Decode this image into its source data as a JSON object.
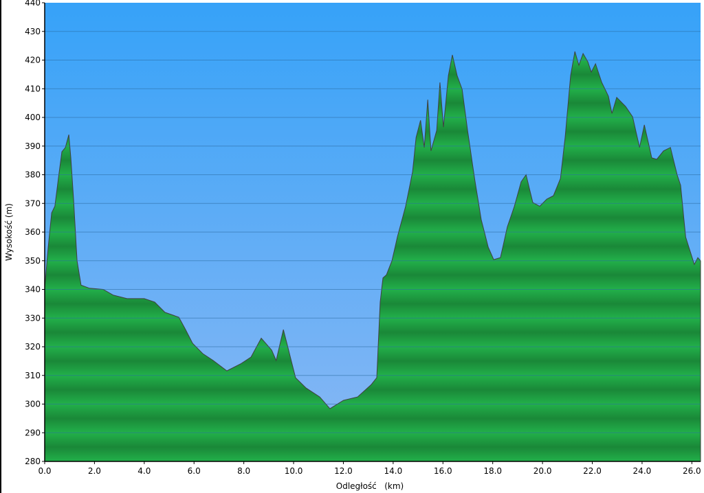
{
  "chart_data": {
    "type": "area",
    "title": "",
    "xlabel": "Odległość   (km)",
    "ylabel": "Wysokość (m)",
    "xlim": [
      0,
      26.35
    ],
    "ylim": [
      280,
      440
    ],
    "xticks": [
      "0.0",
      "2.0",
      "4.0",
      "6.0",
      "8.0",
      "10.0",
      "12.0",
      "14.0",
      "16.0",
      "18.0",
      "20.0",
      "22.0",
      "24.0",
      "26.0"
    ],
    "xtick_values": [
      0,
      2,
      4,
      6,
      8,
      10,
      12,
      14,
      16,
      18,
      20,
      22,
      24,
      26
    ],
    "yticks": [
      280,
      290,
      300,
      310,
      320,
      330,
      340,
      350,
      360,
      370,
      380,
      390,
      400,
      410,
      420,
      430,
      440
    ],
    "grid": true,
    "colors": {
      "sky_top": "#36a2f8",
      "sky_bottom": "#8ab8f4",
      "fill_light": "#22b04a",
      "fill_dark": "#1a8838",
      "outline": "#404040",
      "grid": "#2a6aa0"
    },
    "series": [
      {
        "x": [
          0,
          0.14,
          0.28,
          0.41,
          0.55,
          0.69,
          0.83,
          0.97,
          1.05,
          1.16,
          1.3,
          1.46,
          1.8,
          2.35,
          2.76,
          3.31,
          4.0,
          4.42,
          4.83,
          5.39,
          5.66,
          5.94,
          6.35,
          6.77,
          7.32,
          7.87,
          8.29,
          8.7,
          9.12,
          9.3,
          9.59,
          9.8,
          10.08,
          10.5,
          11.05,
          11.46,
          12.0,
          12.57,
          13.12,
          13.34,
          13.48,
          13.59,
          13.73,
          13.95,
          14.17,
          14.5,
          14.78,
          14.92,
          15.1,
          15.25,
          15.39,
          15.52,
          15.75,
          15.88,
          16.02,
          16.22,
          16.38,
          16.57,
          16.77,
          16.99,
          17.27,
          17.54,
          17.82,
          18.04,
          18.31,
          18.59,
          18.87,
          19.14,
          19.34,
          19.61,
          19.89,
          20.17,
          20.44,
          20.72,
          20.91,
          21.13,
          21.3,
          21.46,
          21.63,
          21.82,
          21.96,
          22.13,
          22.38,
          22.65,
          22.79,
          22.98,
          23.34,
          23.62,
          23.9,
          24.09,
          24.39,
          24.59,
          24.86,
          25.14,
          25.41,
          25.55,
          25.75,
          25.97,
          26.1,
          26.24,
          26.35
        ],
        "y": [
          340.4,
          354.7,
          366.7,
          369,
          378.7,
          388,
          389.5,
          394,
          386,
          371.5,
          350,
          341.5,
          340.4,
          340,
          338,
          336.8,
          336.8,
          335.6,
          332,
          330.3,
          326,
          321.2,
          317.6,
          315.2,
          311.6,
          314,
          316.4,
          323,
          318.8,
          315.2,
          326,
          318.8,
          309.2,
          305.6,
          302.5,
          298.4,
          301.3,
          302.5,
          306.8,
          309.2,
          335.6,
          344,
          345.1,
          350,
          358.3,
          369,
          381,
          393,
          399,
          389.5,
          406.2,
          388.3,
          395.5,
          412.2,
          396.6,
          414.6,
          421.8,
          414.6,
          409.8,
          395.5,
          378.7,
          364.3,
          354.7,
          350.4,
          351.1,
          361.9,
          369,
          377.5,
          380,
          370.3,
          369,
          371.5,
          372.7,
          378.7,
          393,
          414.6,
          423,
          418.2,
          422.3,
          419.4,
          415.8,
          418.7,
          412.2,
          407.4,
          401.4,
          407,
          403.8,
          400.2,
          389.5,
          397.4,
          385.9,
          385.4,
          388.3,
          389.5,
          379.9,
          376.3,
          358.3,
          352.3,
          348.7,
          351.1,
          350
        ]
      }
    ]
  }
}
